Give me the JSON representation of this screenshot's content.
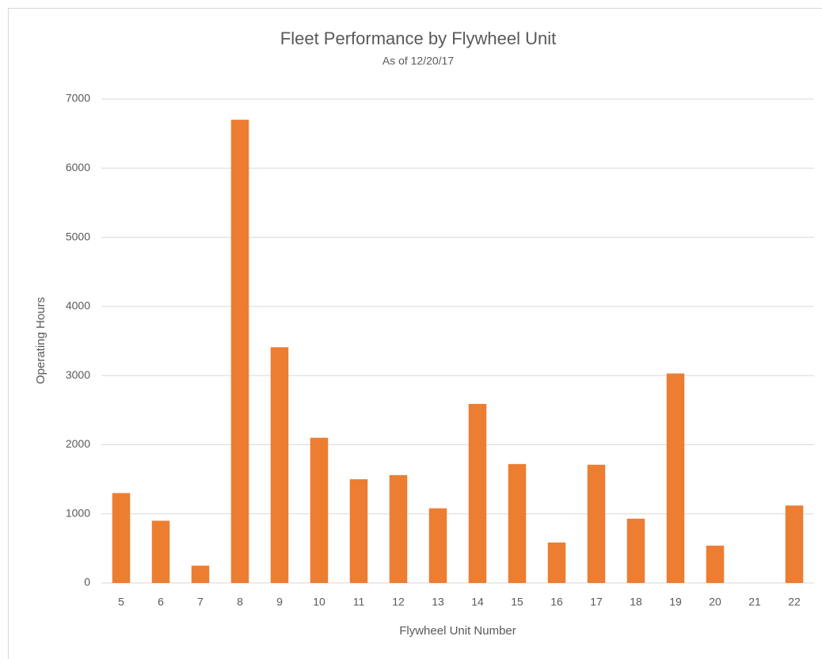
{
  "chart_data": {
    "type": "bar",
    "title": "Fleet Performance by Flywheel Unit",
    "subtitle": "As of 12/20/17",
    "x_label": "Flywheel Unit Number",
    "y_label": "Operating Hours",
    "categories": [
      "5",
      "6",
      "7",
      "8",
      "9",
      "10",
      "11",
      "12",
      "13",
      "14",
      "15",
      "16",
      "17",
      "18",
      "19",
      "20",
      "21",
      "22"
    ],
    "values": [
      1300,
      900,
      250,
      6700,
      3410,
      2100,
      1500,
      1560,
      1080,
      2590,
      1720,
      585,
      1710,
      930,
      3030,
      540,
      0,
      1120
    ],
    "color": "#ed7d31",
    "ylim": [
      0,
      7000
    ],
    "yticks": [
      0,
      1000,
      2000,
      3000,
      4000,
      5000,
      6000,
      7000
    ],
    "grid": true
  }
}
